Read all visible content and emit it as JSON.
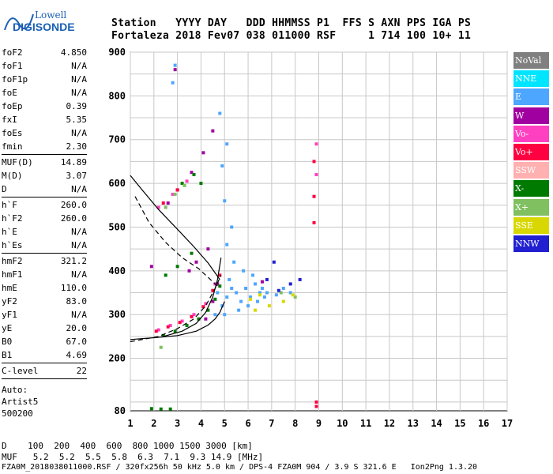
{
  "logo": {
    "line1": "Lowell",
    "line2": "DIGISONDE"
  },
  "header": {
    "line1": "Station   YYYY DAY   DDD HHMMSS P1  FFS S AXN PPS IGA PS",
    "line2": "Fortaleza 2018 Fev07 038 011000 RSF     1 714 100 10+ 11"
  },
  "params": {
    "group1": [
      {
        "name": "foF2",
        "value": "4.850"
      },
      {
        "name": "foF1",
        "value": "N/A"
      },
      {
        "name": "foF1p",
        "value": "N/A"
      },
      {
        "name": "foE",
        "value": "N/A"
      },
      {
        "name": "foEp",
        "value": "0.39"
      },
      {
        "name": "fxI",
        "value": "5.35"
      },
      {
        "name": "foEs",
        "value": "N/A"
      },
      {
        "name": "fmin",
        "value": "2.30"
      }
    ],
    "group2": [
      {
        "name": "MUF(D)",
        "value": "14.89"
      },
      {
        "name": "M(D)",
        "value": "3.07"
      },
      {
        "name": "D",
        "value": "N/A"
      }
    ],
    "group3": [
      {
        "name": "h`F",
        "value": "260.0"
      },
      {
        "name": "h`F2",
        "value": "260.0"
      },
      {
        "name": "h`E",
        "value": "N/A"
      },
      {
        "name": "h`Es",
        "value": "N/A"
      }
    ],
    "group4": [
      {
        "name": "hmF2",
        "value": "321.2"
      },
      {
        "name": "hmF1",
        "value": "N/A"
      },
      {
        "name": "hmE",
        "value": "110.0"
      },
      {
        "name": "yF2",
        "value": "83.0"
      },
      {
        "name": "yF1",
        "value": "N/A"
      },
      {
        "name": "yE",
        "value": "20.0"
      },
      {
        "name": "B0",
        "value": "67.0"
      },
      {
        "name": "B1",
        "value": "4.69"
      }
    ],
    "group5": [
      {
        "name": "C-level",
        "value": "22"
      }
    ],
    "auto": [
      "Auto:",
      "Artist5",
      "500200"
    ]
  },
  "legend": [
    {
      "label": "NoVal",
      "bg": "#808080",
      "fg": "#ffffff"
    },
    {
      "label": "NNE",
      "bg": "#00e5ff",
      "fg": "#ffffff"
    },
    {
      "label": "E",
      "bg": "#4da6ff",
      "fg": "#ffffff"
    },
    {
      "label": "W",
      "bg": "#a000a0",
      "fg": "#ffffff"
    },
    {
      "label": "Vo-",
      "bg": "#ff40c0",
      "fg": "#ffffff"
    },
    {
      "label": "Vo+",
      "bg": "#ff0040",
      "fg": "#ffffff"
    },
    {
      "label": "SSW",
      "bg": "#ffb0b0",
      "fg": "#ffffff"
    },
    {
      "label": "X-",
      "bg": "#007a00",
      "fg": "#ffffff"
    },
    {
      "label": "X+",
      "bg": "#80c060",
      "fg": "#ffffff"
    },
    {
      "label": "SSE",
      "bg": "#d8d800",
      "fg": "#ffffff"
    },
    {
      "label": "NNW",
      "bg": "#2020d0",
      "fg": "#ffffff"
    }
  ],
  "chart_data": {
    "type": "scatter",
    "xlim": [
      1,
      17
    ],
    "ylim": [
      80,
      900
    ],
    "x_ticks": [
      1,
      2,
      3,
      4,
      5,
      6,
      7,
      8,
      9,
      10,
      11,
      12,
      13,
      14,
      15,
      16,
      17
    ],
    "y_ticks": [
      80,
      200,
      300,
      400,
      500,
      600,
      700,
      800,
      900
    ],
    "grid": true,
    "clusters": [
      {
        "color": "#4da6ff",
        "points": [
          [
            4.9,
            320
          ],
          [
            5.1,
            340
          ],
          [
            5.3,
            360
          ],
          [
            5.5,
            350
          ],
          [
            5.7,
            330
          ],
          [
            5.9,
            360
          ],
          [
            6.1,
            340
          ],
          [
            6.3,
            370
          ],
          [
            6.5,
            350
          ],
          [
            6.7,
            340
          ],
          [
            5.0,
            300
          ],
          [
            5.2,
            380
          ],
          [
            5.4,
            420
          ],
          [
            5.6,
            310
          ],
          [
            5.8,
            400
          ],
          [
            6.0,
            320
          ],
          [
            6.2,
            390
          ],
          [
            6.4,
            330
          ],
          [
            6.6,
            360
          ],
          [
            6.8,
            350
          ],
          [
            7.2,
            345
          ],
          [
            7.5,
            360
          ],
          [
            7.8,
            350
          ],
          [
            5.1,
            460
          ],
          [
            5.3,
            500
          ],
          [
            5.0,
            560
          ],
          [
            4.9,
            640
          ],
          [
            5.1,
            690
          ],
          [
            4.8,
            760
          ],
          [
            2.9,
            870
          ],
          [
            2.8,
            830
          ],
          [
            4.6,
            300
          ],
          [
            4.7,
            350
          ]
        ]
      },
      {
        "color": "#a000a0",
        "points": [
          [
            4.2,
            290
          ],
          [
            4.5,
            330
          ],
          [
            4.7,
            370
          ],
          [
            3.8,
            420
          ],
          [
            3.5,
            400
          ],
          [
            2.6,
            555
          ],
          [
            3.0,
            585
          ],
          [
            3.6,
            625
          ],
          [
            4.1,
            670
          ],
          [
            4.5,
            720
          ],
          [
            2.9,
            860
          ],
          [
            6.6,
            375
          ],
          [
            1.9,
            410
          ],
          [
            4.3,
            450
          ]
        ]
      },
      {
        "color": "#ff40c0",
        "points": [
          [
            2.2,
            265
          ],
          [
            2.7,
            275
          ],
          [
            3.2,
            285
          ],
          [
            3.7,
            300
          ],
          [
            4.2,
            325
          ],
          [
            4.6,
            370
          ],
          [
            2.2,
            545
          ],
          [
            2.8,
            575
          ],
          [
            3.4,
            605
          ],
          [
            8.9,
            620
          ],
          [
            8.9,
            690
          ]
        ]
      },
      {
        "color": "#ff0040",
        "points": [
          [
            2.1,
            262
          ],
          [
            2.6,
            272
          ],
          [
            3.1,
            282
          ],
          [
            3.6,
            295
          ],
          [
            4.1,
            318
          ],
          [
            4.5,
            355
          ],
          [
            4.8,
            390
          ],
          [
            2.4,
            555
          ],
          [
            3.0,
            585
          ],
          [
            8.8,
            510
          ],
          [
            8.8,
            570
          ],
          [
            8.8,
            650
          ],
          [
            8.9,
            90
          ],
          [
            8.9,
            100
          ]
        ]
      },
      {
        "color": "#007a00",
        "points": [
          [
            2.4,
            252
          ],
          [
            2.9,
            262
          ],
          [
            3.4,
            275
          ],
          [
            3.9,
            290
          ],
          [
            4.3,
            310
          ],
          [
            4.6,
            335
          ],
          [
            4.8,
            365
          ],
          [
            2.5,
            390
          ],
          [
            3.0,
            410
          ],
          [
            3.6,
            440
          ],
          [
            3.2,
            600
          ],
          [
            3.7,
            620
          ],
          [
            4.0,
            600
          ],
          [
            1.9,
            85
          ],
          [
            2.3,
            84
          ],
          [
            2.7,
            84
          ]
        ]
      },
      {
        "color": "#80c060",
        "points": [
          [
            2.5,
            545
          ],
          [
            2.9,
            575
          ],
          [
            3.3,
            595
          ],
          [
            2.3,
            225
          ],
          [
            7.4,
            350
          ],
          [
            8.0,
            340
          ]
        ]
      },
      {
        "color": "#d8d800",
        "points": [
          [
            6.1,
            335
          ],
          [
            6.5,
            345
          ],
          [
            6.9,
            320
          ],
          [
            7.5,
            330
          ],
          [
            7.9,
            345
          ],
          [
            6.3,
            310
          ]
        ]
      },
      {
        "color": "#2020d0",
        "points": [
          [
            6.8,
            380
          ],
          [
            7.3,
            355
          ],
          [
            7.8,
            370
          ],
          [
            7.1,
            420
          ],
          [
            8.2,
            380
          ]
        ]
      }
    ],
    "traces": [
      {
        "style": "solid",
        "points": [
          [
            1.0,
            243
          ],
          [
            2.0,
            247
          ],
          [
            3.0,
            252
          ],
          [
            3.8,
            262
          ],
          [
            4.3,
            276
          ],
          [
            4.6,
            290
          ],
          [
            4.8,
            305
          ],
          [
            5.0,
            330
          ]
        ]
      },
      {
        "style": "solid",
        "points": [
          [
            2.4,
            250
          ],
          [
            3.2,
            262
          ],
          [
            3.8,
            280
          ],
          [
            4.2,
            305
          ],
          [
            4.5,
            340
          ],
          [
            4.7,
            380
          ],
          [
            4.85,
            430
          ]
        ]
      },
      {
        "style": "dashed",
        "points": [
          [
            1.0,
            238
          ],
          [
            2.2,
            250
          ],
          [
            3.0,
            268
          ],
          [
            3.7,
            290
          ],
          [
            4.2,
            320
          ],
          [
            4.6,
            360
          ],
          [
            4.85,
            390
          ]
        ]
      },
      {
        "style": "dashed",
        "points": [
          [
            1.2,
            570
          ],
          [
            1.8,
            510
          ],
          [
            2.5,
            465
          ],
          [
            3.2,
            430
          ],
          [
            3.9,
            405
          ],
          [
            4.3,
            385
          ],
          [
            4.7,
            365
          ]
        ]
      },
      {
        "style": "solid",
        "points": [
          [
            1.0,
            618
          ],
          [
            1.5,
            585
          ],
          [
            2.2,
            540
          ],
          [
            3.0,
            495
          ],
          [
            3.7,
            455
          ],
          [
            4.3,
            418
          ],
          [
            4.8,
            380
          ]
        ]
      }
    ]
  },
  "footer": {
    "line1": "D    100  200  400  600  800 1000 1500 3000 [km]",
    "line2": "MUF   5.2  5.2  5.5  5.8  6.3  7.1  9.3 14.9 [MHz]",
    "line3": "FZA0M_2018038011000.RSF / 320fx256h 50 kHz 5.0 km / DPS-4 FZA0M 904 / 3.9 S 321.6 E   Ion2Png 1.3.20"
  }
}
